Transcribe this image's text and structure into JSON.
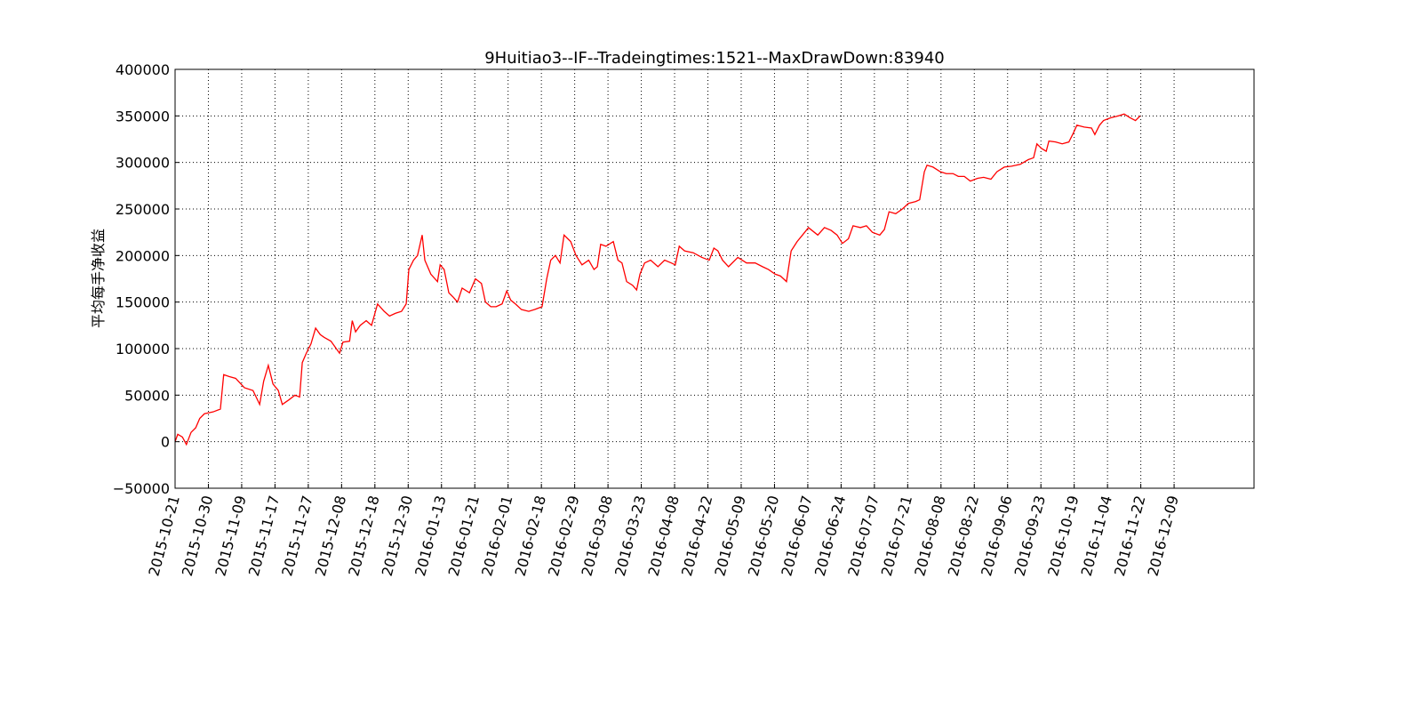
{
  "chart_data": {
    "type": "line",
    "title": "9Huitiao3--IF--Tradeingtimes:1521--MaxDrawDown:83940",
    "ylabel": "平均每手净收益",
    "grid": true,
    "xlim": [
      0,
      1620
    ],
    "ylim": [
      -50000,
      400000
    ],
    "yticks": [
      {
        "value": -50000,
        "label": "−50000"
      },
      0,
      50000,
      100000,
      150000,
      200000,
      250000,
      300000,
      350000,
      400000
    ],
    "xticks": [
      {
        "value": 0,
        "label": "2015-10-21"
      },
      {
        "value": 50,
        "label": "2015-10-30"
      },
      {
        "value": 100,
        "label": "2015-11-09"
      },
      {
        "value": 150,
        "label": "2015-11-17"
      },
      {
        "value": 200,
        "label": "2015-11-27"
      },
      {
        "value": 250,
        "label": "2015-12-08"
      },
      {
        "value": 300,
        "label": "2015-12-18"
      },
      {
        "value": 350,
        "label": "2015-12-30"
      },
      {
        "value": 400,
        "label": "2016-01-13"
      },
      {
        "value": 450,
        "label": "2016-01-21"
      },
      {
        "value": 500,
        "label": "2016-02-01"
      },
      {
        "value": 550,
        "label": "2016-02-18"
      },
      {
        "value": 600,
        "label": "2016-02-29"
      },
      {
        "value": 650,
        "label": "2016-03-08"
      },
      {
        "value": 700,
        "label": "2016-03-23"
      },
      {
        "value": 750,
        "label": "2016-04-08"
      },
      {
        "value": 800,
        "label": "2016-04-22"
      },
      {
        "value": 850,
        "label": "2016-05-09"
      },
      {
        "value": 900,
        "label": "2016-05-20"
      },
      {
        "value": 950,
        "label": "2016-06-07"
      },
      {
        "value": 1000,
        "label": "2016-06-24"
      },
      {
        "value": 1050,
        "label": "2016-07-07"
      },
      {
        "value": 1100,
        "label": "2016-07-21"
      },
      {
        "value": 1150,
        "label": "2016-08-08"
      },
      {
        "value": 1200,
        "label": "2016-08-22"
      },
      {
        "value": 1250,
        "label": "2016-09-06"
      },
      {
        "value": 1300,
        "label": "2016-09-23"
      },
      {
        "value": 1350,
        "label": "2016-10-19"
      },
      {
        "value": 1400,
        "label": "2016-11-04"
      },
      {
        "value": 1450,
        "label": "2016-11-22"
      },
      {
        "value": 1500,
        "label": "2016-12-09"
      }
    ],
    "series": [
      {
        "color": "#ff0000",
        "x": [
          0,
          4,
          11,
          17,
          24,
          31,
          37,
          44,
          57,
          68,
          73,
          81,
          91,
          104,
          117,
          127,
          133,
          140,
          147,
          155,
          161,
          171,
          180,
          187,
          191,
          197,
          204,
          211,
          218,
          224,
          234,
          242,
          247,
          252,
          262,
          266,
          271,
          278,
          287,
          295,
          304,
          314,
          322,
          331,
          340,
          347,
          351,
          358,
          364,
          371,
          375,
          384,
          394,
          398,
          404,
          411,
          418,
          424,
          431,
          442,
          451,
          460,
          466,
          474,
          482,
          491,
          498,
          504,
          511,
          520,
          531,
          540,
          551,
          558,
          564,
          571,
          578,
          584,
          594,
          602,
          611,
          621,
          629,
          634,
          639,
          647,
          658,
          665,
          671,
          678,
          687,
          693,
          698,
          705,
          714,
          725,
          735,
          745,
          751,
          757,
          765,
          778,
          791,
          802,
          809,
          815,
          822,
          831,
          845,
          858,
          871,
          882,
          891,
          901,
          909,
          918,
          925,
          934,
          942,
          951,
          965,
          975,
          985,
          994,
          1002,
          1011,
          1018,
          1029,
          1038,
          1047,
          1058,
          1065,
          1072,
          1082,
          1092,
          1101,
          1112,
          1118,
          1125,
          1129,
          1138,
          1149,
          1158,
          1168,
          1176,
          1185,
          1194,
          1205,
          1214,
          1225,
          1234,
          1245,
          1256,
          1269,
          1281,
          1289,
          1294,
          1301,
          1308,
          1312,
          1322,
          1332,
          1342,
          1349,
          1354,
          1365,
          1376,
          1381,
          1388,
          1394,
          1405,
          1416,
          1425,
          1434,
          1442,
          1449
        ],
        "values": [
          0,
          8000,
          5000,
          -3000,
          10000,
          15000,
          25000,
          30000,
          32000,
          35000,
          72000,
          70000,
          68000,
          58000,
          55000,
          40000,
          65000,
          82000,
          62000,
          55000,
          40000,
          45000,
          50000,
          48000,
          85000,
          95000,
          105000,
          122000,
          115000,
          112000,
          108000,
          100000,
          95000,
          107000,
          108000,
          130000,
          118000,
          125000,
          130000,
          125000,
          148000,
          140000,
          135000,
          138000,
          140000,
          148000,
          185000,
          195000,
          200000,
          222000,
          195000,
          180000,
          172000,
          190000,
          185000,
          160000,
          155000,
          150000,
          165000,
          160000,
          175000,
          170000,
          150000,
          145000,
          145000,
          148000,
          162000,
          152000,
          148000,
          142000,
          140000,
          142000,
          145000,
          175000,
          195000,
          200000,
          192000,
          222000,
          215000,
          200000,
          190000,
          195000,
          185000,
          188000,
          212000,
          210000,
          215000,
          195000,
          192000,
          172000,
          168000,
          163000,
          180000,
          192000,
          195000,
          188000,
          195000,
          192000,
          190000,
          210000,
          205000,
          203000,
          198000,
          195000,
          208000,
          205000,
          195000,
          188000,
          198000,
          192000,
          192000,
          188000,
          185000,
          180000,
          178000,
          172000,
          205000,
          215000,
          222000,
          230000,
          222000,
          230000,
          227000,
          222000,
          213000,
          218000,
          232000,
          230000,
          232000,
          225000,
          222000,
          228000,
          247000,
          245000,
          250000,
          256000,
          258000,
          260000,
          290000,
          297000,
          295000,
          290000,
          288000,
          288000,
          285000,
          285000,
          280000,
          283000,
          284000,
          282000,
          290000,
          295000,
          296000,
          298000,
          303000,
          305000,
          320000,
          315000,
          312000,
          323000,
          322000,
          320000,
          322000,
          332000,
          340000,
          338000,
          337000,
          330000,
          340000,
          345000,
          348000,
          350000,
          352000,
          348000,
          345000,
          350000
        ]
      }
    ]
  }
}
